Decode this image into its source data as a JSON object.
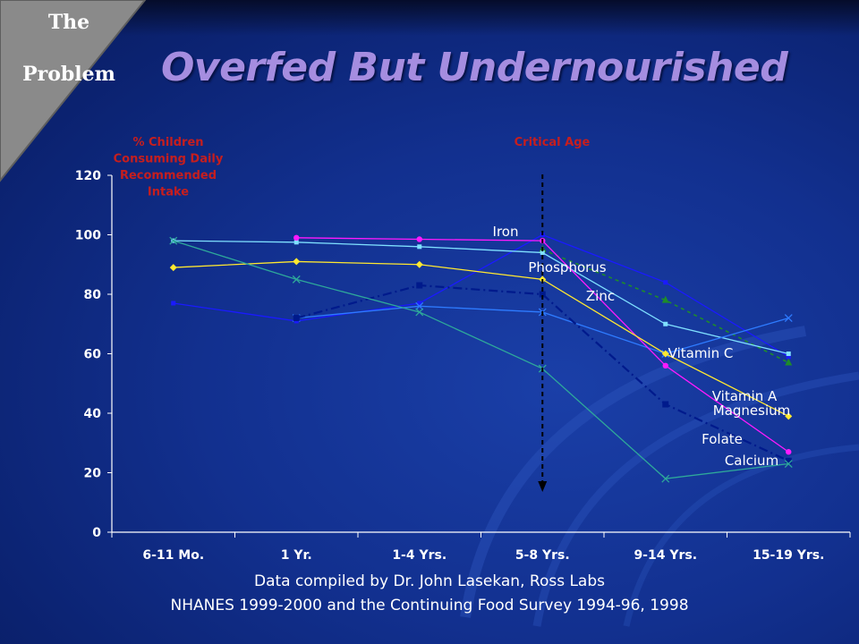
{
  "header": {
    "corner_line1": "The",
    "corner_line2": "Problem",
    "title": "Overfed But Undernourished"
  },
  "chart_data": {
    "type": "line",
    "ylabel_lines": [
      "% Children",
      "Consuming  Daily",
      "Recommended",
      "Intake"
    ],
    "marker_label": "Critical Age",
    "marker_category": "5-8 Yrs.",
    "categories": [
      "6-11 Mo.",
      "1 Yr.",
      "1-4 Yrs.",
      "5-8 Yrs.",
      "9-14 Yrs.",
      "15-19 Yrs."
    ],
    "ylim": [
      0,
      120
    ],
    "yticks": [
      0,
      20,
      40,
      60,
      80,
      100,
      120
    ],
    "grid": false,
    "colors": {
      "Iron": "#1a1aff",
      "Phosphorus": "#1e8c2a",
      "Zinc": "#7fe0ff",
      "Vitamin C": "#2e7bff",
      "Vitamin A": "#ff1aff",
      "Magnesium": "#ffe830",
      "Folate": "#001a8c",
      "Calcium": "#2ea89a"
    },
    "series": [
      {
        "name": "Iron",
        "values": [
          77,
          71,
          77,
          100,
          84,
          59
        ]
      },
      {
        "name": "Phosphorus",
        "values": [
          null,
          null,
          null,
          95,
          78,
          57
        ]
      },
      {
        "name": "Zinc",
        "values": [
          98,
          97.5,
          96,
          94,
          70,
          60
        ]
      },
      {
        "name": "Vitamin C",
        "values": [
          null,
          72,
          76,
          74,
          60,
          72
        ]
      },
      {
        "name": "Vitamin A",
        "values": [
          null,
          99,
          98.5,
          98,
          56,
          27
        ]
      },
      {
        "name": "Magnesium",
        "values": [
          89,
          91,
          90,
          85,
          60,
          39
        ]
      },
      {
        "name": "Folate",
        "values": [
          null,
          72,
          83,
          80,
          43,
          24
        ]
      },
      {
        "name": "Calcium",
        "values": [
          98,
          85,
          74,
          55,
          18,
          23
        ]
      }
    ],
    "series_label_text": {
      "Iron": "Iron",
      "Phosphorus": "Phosphorus",
      "Zinc": "Zinc",
      "Vitamin C": "Vitamin C",
      "Vitamin A": "Vitamin A",
      "Magnesium": "Magnesium",
      "Folate": "Folate",
      "Calcium": "Calcium"
    }
  },
  "footer": {
    "line1": "Data compiled by Dr. John Lasekan, Ross Labs",
    "line2": "NHANES 1999-2000 and  the Continuing Food Survey 1994-96, 1998"
  }
}
